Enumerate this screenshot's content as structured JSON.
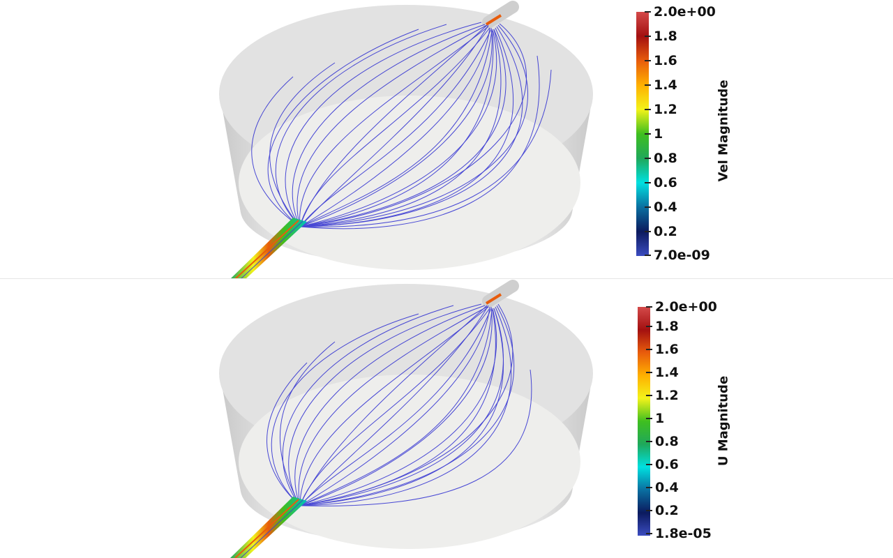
{
  "views": [
    {
      "colorbar": {
        "title": "Vel Magnitude",
        "ticks": [
          "2.0e+00",
          "1.8",
          "1.6",
          "1.4",
          "1.2",
          "1",
          "0.8",
          "0.6",
          "0.4",
          "0.2",
          "7.0e-09"
        ]
      }
    },
    {
      "colorbar": {
        "title": "U Magnitude",
        "ticks": [
          "2.0e+00",
          "1.8",
          "1.6",
          "1.4",
          "1.2",
          "1",
          "0.8",
          "0.6",
          "0.4",
          "0.2",
          "1.8e-05"
        ]
      }
    }
  ],
  "colormap": [
    "#3b4cc0",
    "#0b1a5e",
    "#0a6fa0",
    "#00e0e0",
    "#1fa85a",
    "#3fbf1f",
    "#f3f31a",
    "#ffb000",
    "#e85c0c",
    "#a31010",
    "#d44a4a"
  ],
  "streamline_color": "#2a2ad0",
  "tank_color": "#d8d8d8"
}
